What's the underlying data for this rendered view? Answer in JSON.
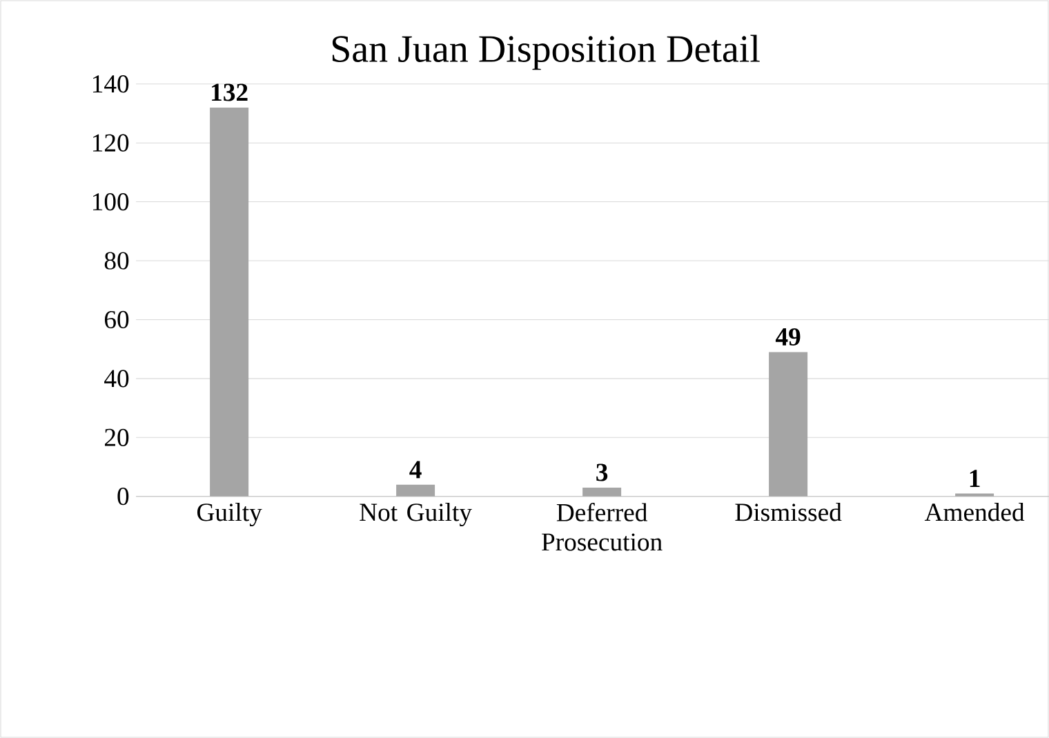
{
  "chart_data": {
    "type": "bar",
    "title": "San Juan Disposition Detail",
    "categories": [
      "Guilty",
      "Not Guilty",
      "Deferred Prosecution",
      "Dismissed",
      "Amended"
    ],
    "values": [
      132,
      4,
      3,
      49,
      1
    ],
    "color": "#a5a5a5",
    "ylim": [
      0,
      140
    ],
    "yticks": [
      0,
      20,
      40,
      60,
      80,
      100,
      120,
      140
    ],
    "grid": "y",
    "data_labels": true
  }
}
